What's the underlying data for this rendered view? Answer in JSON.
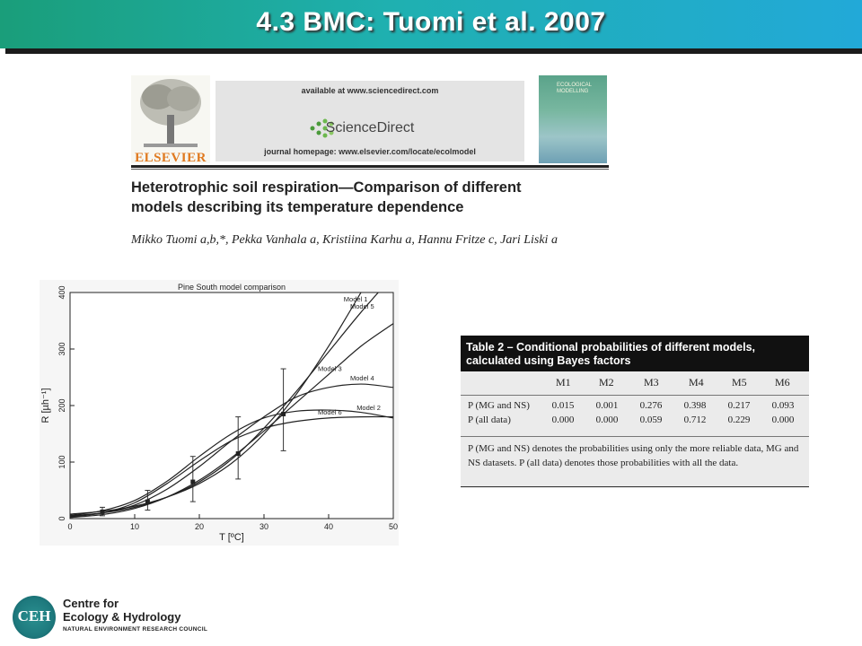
{
  "slide": {
    "title": "4.3 BMC: Tuomi et al. 2007"
  },
  "paper_header": {
    "publisher": "ELSEVIER",
    "available_at": "available at www.sciencedirect.com",
    "brand": "ScienceDirect",
    "homepage": "journal homepage: www.elsevier.com/locate/ecolmodel",
    "journal_cover_title": "ECOLOGICAL MODELLING",
    "title_line1": "Heterotrophic soil respiration—Comparison of different",
    "title_line2": "models describing its temperature dependence",
    "authors": "Mikko Tuomi a,b,*, Pekka Vanhala a, Kristiina Karhu a, Hannu Fritze c, Jari Liski a"
  },
  "chart_data": {
    "type": "line",
    "title": "Pine South model comparison",
    "xlabel": "T [ºC]",
    "ylabel": "R [µh⁻¹]",
    "xlim": [
      0,
      50
    ],
    "ylim": [
      0,
      400
    ],
    "x_ticks": [
      "0",
      "10",
      "20",
      "30",
      "40",
      "50"
    ],
    "y_ticks": [
      "0",
      "100",
      "200",
      "300",
      "400"
    ],
    "x": [
      0,
      5,
      10,
      15,
      20,
      25,
      30,
      35,
      40,
      45,
      50
    ],
    "series": [
      {
        "name": "Model 1",
        "values": [
          8,
          13,
          22,
          38,
          62,
          98,
          150,
          220,
          305,
          400,
          500
        ]
      },
      {
        "name": "Model 5",
        "values": [
          5,
          10,
          20,
          38,
          65,
          105,
          160,
          225,
          295,
          365,
          430
        ]
      },
      {
        "name": "Model 3",
        "values": [
          2,
          7,
          18,
          38,
          68,
          108,
          155,
          205,
          255,
          305,
          345
        ]
      },
      {
        "name": "Model 4",
        "values": [
          4,
          10,
          24,
          52,
          92,
          138,
          180,
          215,
          232,
          238,
          232
        ]
      },
      {
        "name": "Model 2",
        "values": [
          6,
          14,
          32,
          66,
          110,
          150,
          178,
          190,
          192,
          188,
          178
        ]
      },
      {
        "name": "Model 6",
        "values": [
          3,
          10,
          28,
          62,
          102,
          138,
          160,
          172,
          178,
          180,
          180
        ]
      }
    ],
    "observations": [
      {
        "x": 5,
        "y": 12,
        "low": 5,
        "high": 20
      },
      {
        "x": 12,
        "y": 30,
        "low": 15,
        "high": 50
      },
      {
        "x": 19,
        "y": 65,
        "low": 30,
        "high": 110
      },
      {
        "x": 26,
        "y": 115,
        "low": 70,
        "high": 180
      },
      {
        "x": 33,
        "y": 185,
        "low": 120,
        "high": 265
      }
    ],
    "grid": false,
    "legend": "inline labels at right"
  },
  "table": {
    "caption_line1": "Table 2 – Conditional probabilities of different models,",
    "caption_line2": "calculated using Bayes factors",
    "columns": [
      "M1",
      "M2",
      "M3",
      "M4",
      "M5",
      "M6"
    ],
    "rows": [
      {
        "label": "P (MG and NS)",
        "values": [
          "0.015",
          "0.001",
          "0.276",
          "0.398",
          "0.217",
          "0.093"
        ]
      },
      {
        "label": "P (all data)",
        "values": [
          "0.000",
          "0.000",
          "0.059",
          "0.712",
          "0.229",
          "0.000"
        ]
      }
    ],
    "note": "P (MG and NS) denotes the probabilities using only the more reliable data, MG and NS datasets. P (all data) denotes those probabilities with all the data."
  },
  "footer": {
    "logo_letters": "CEH",
    "line1": "Centre for",
    "line2": "Ecology & Hydrology",
    "line3": "NATURAL ENVIRONMENT RESEARCH COUNCIL"
  },
  "colors": {
    "title_gradient_start": "#1a9e7a",
    "title_gradient_end": "#22a9d8",
    "ceh_teal": "#1e7a7e"
  }
}
